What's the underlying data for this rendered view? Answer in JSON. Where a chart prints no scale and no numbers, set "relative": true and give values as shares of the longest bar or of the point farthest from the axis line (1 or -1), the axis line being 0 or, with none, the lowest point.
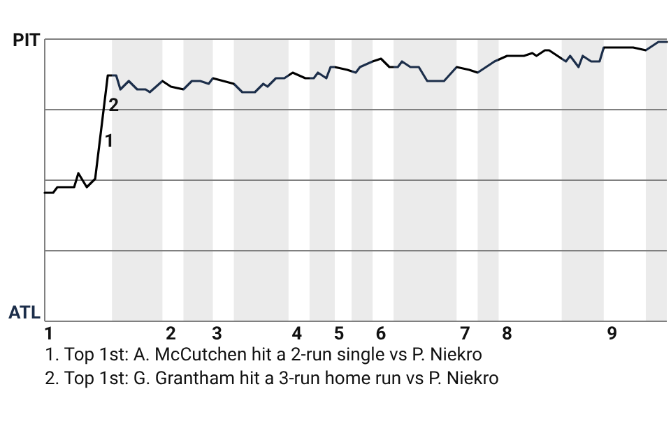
{
  "chart_data": {
    "type": "line",
    "relative": true,
    "grid": "y",
    "categories": [
      null,
      "1",
      null,
      null,
      null,
      null,
      null,
      null,
      null,
      null,
      null,
      null,
      null,
      null,
      null,
      null,
      null,
      null,
      null,
      null,
      null,
      null,
      null,
      null,
      null,
      null,
      null,
      null,
      null,
      null,
      "2",
      null,
      null,
      null,
      null,
      null,
      null,
      null,
      null,
      null,
      null,
      "3",
      null,
      null,
      null,
      null,
      null,
      null,
      null,
      null,
      null,
      null,
      null,
      null,
      null,
      null,
      null,
      null,
      null,
      null,
      "4",
      null,
      null,
      null,
      null,
      null,
      null,
      null,
      null,
      null,
      "5",
      null,
      null,
      null,
      null,
      null,
      null,
      null,
      null,
      null,
      "6",
      null,
      null,
      null,
      null,
      null,
      null,
      null,
      null,
      null,
      null,
      null,
      null,
      null,
      null,
      null,
      null,
      null,
      null,
      null,
      "7",
      null,
      null,
      null,
      null,
      null,
      null,
      null,
      null,
      null,
      "8",
      null,
      null,
      null,
      null,
      null,
      null,
      null,
      null,
      null,
      null,
      null,
      null,
      null,
      null,
      null,
      null,
      null,
      null,
      null,
      null,
      null,
      null,
      null,
      null,
      "9",
      null,
      null,
      null,
      null,
      null,
      null,
      null,
      null,
      null,
      null,
      null,
      null,
      null
    ],
    "series": [
      {
        "color": "#000000",
        "values": [
          0.46,
          null,
          0.46,
          0.48,
          null,
          null,
          null,
          0.48,
          0.53,
          null,
          0.48,
          null,
          0.51,
          null,
          null,
          0.88,
          null,
          0.88,
          0.83,
          null,
          0.86,
          null,
          0.83,
          null,
          0.83,
          0.82,
          null,
          null,
          0.86,
          null,
          0.84,
          null,
          null,
          0.83,
          null,
          0.86,
          null,
          0.86,
          null,
          0.85,
          0.87,
          null,
          null,
          null,
          null,
          0.85,
          null,
          0.82,
          null,
          null,
          0.82,
          null,
          0.85,
          0.84,
          null,
          0.87,
          null,
          0.87,
          null,
          0.89,
          null,
          null,
          0.87,
          null,
          0.87,
          0.89,
          null,
          0.87,
          0.91,
          0.91,
          null,
          null,
          0.9,
          null,
          0.89,
          0.91,
          null,
          null,
          0.93,
          null,
          0.94,
          null,
          0.91,
          null,
          0.91,
          0.93,
          null,
          0.91,
          null,
          0.91,
          null,
          0.86,
          null,
          null,
          null,
          0.86,
          null,
          null,
          0.91,
          null,
          null,
          0.9,
          null,
          0.89,
          null,
          null,
          null,
          0.93,
          null,
          null,
          0.95,
          null,
          null,
          null,
          0.95,
          null,
          0.96,
          0.95,
          null,
          0.97,
          0.97,
          null,
          null,
          null,
          0.93,
          0.95,
          null,
          0.91,
          0.95,
          null,
          0.93,
          null,
          0.93,
          0.98,
          null,
          0.98,
          null,
          null,
          null,
          null,
          0.98,
          null,
          null,
          0.97,
          null,
          null,
          1,
          null,
          1
        ]
      }
    ],
    "annotations": [
      "1",
      "2",
      "PIT",
      "ATL",
      "1. Top 1st: A. McCutchen hit a 2-run single vs P. Niekro",
      "2. Top 1st: G. Grantham hit a 3-run home run vs P. Niekro"
    ]
  }
}
